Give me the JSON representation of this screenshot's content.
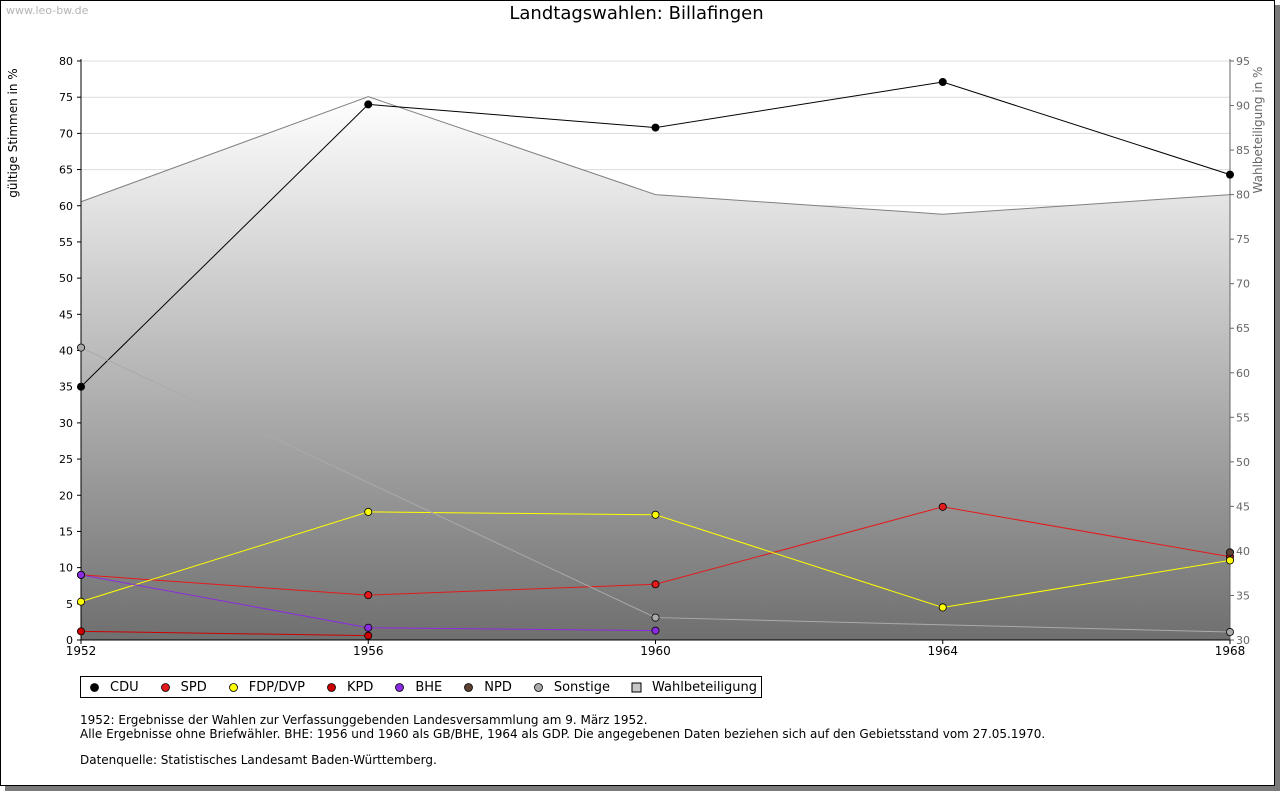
{
  "watermark": "www.leo-bw.de",
  "chart_data": {
    "type": "line",
    "title": "Landtagswahlen: Billafingen",
    "x": [
      "1952",
      "1956",
      "1960",
      "1964",
      "1968"
    ],
    "ylabel": "gültige Stimmen in %",
    "y2label": "Wahlbeteiligung in %",
    "ylim": [
      0,
      80
    ],
    "y2lim": [
      30,
      95
    ],
    "yticks": [
      "0",
      "5",
      "10",
      "15",
      "20",
      "25",
      "30",
      "35",
      "40",
      "45",
      "50",
      "55",
      "60",
      "65",
      "70",
      "75",
      "80"
    ],
    "y2ticks": [
      "30",
      "35",
      "40",
      "45",
      "50",
      "55",
      "60",
      "65",
      "70",
      "75",
      "80",
      "85",
      "90",
      "95"
    ],
    "grid": true,
    "legend_position": "bottom",
    "series": [
      {
        "name": "CDU",
        "color": "#000000",
        "values": [
          35.0,
          74.0,
          70.8,
          77.1,
          64.3
        ]
      },
      {
        "name": "SPD",
        "color": "#e41a1c",
        "values": [
          9.0,
          6.2,
          7.7,
          18.4,
          11.5
        ]
      },
      {
        "name": "FDP/DVP",
        "color": "#ffff00",
        "values": [
          5.3,
          17.7,
          17.3,
          4.5,
          11.0
        ]
      },
      {
        "name": "KPD",
        "color": "#cc0000",
        "values": [
          1.2,
          0.6,
          null,
          null,
          null
        ]
      },
      {
        "name": "BHE",
        "color": "#8a2be2",
        "values": [
          9.0,
          1.7,
          1.3,
          null,
          null
        ]
      },
      {
        "name": "NPD",
        "color": "#5c4033",
        "values": [
          null,
          null,
          null,
          null,
          12.1
        ]
      },
      {
        "name": "Sonstige",
        "color": "#aaaaaa",
        "values": [
          40.4,
          null,
          3.1,
          null,
          1.1
        ]
      },
      {
        "name": "Wahlbeteiligung",
        "type": "area",
        "axis": "right",
        "color": "#808080",
        "values": [
          79.2,
          91.0,
          80.0,
          77.8,
          80.0
        ]
      }
    ]
  },
  "notes": {
    "line1": "1952: Ergebnisse der Wahlen zur Verfassunggebenden Landesversammlung am 9. März 1952.",
    "line2": "Alle Ergebnisse ohne Briefwähler. BHE: 1956 und 1960 als GB/BHE, 1964 als GDP. Die angegebenen Daten beziehen sich auf den Gebietsstand vom 27.05.1970.",
    "source": "Datenquelle: Statistisches Landesamt Baden-Württemberg."
  }
}
